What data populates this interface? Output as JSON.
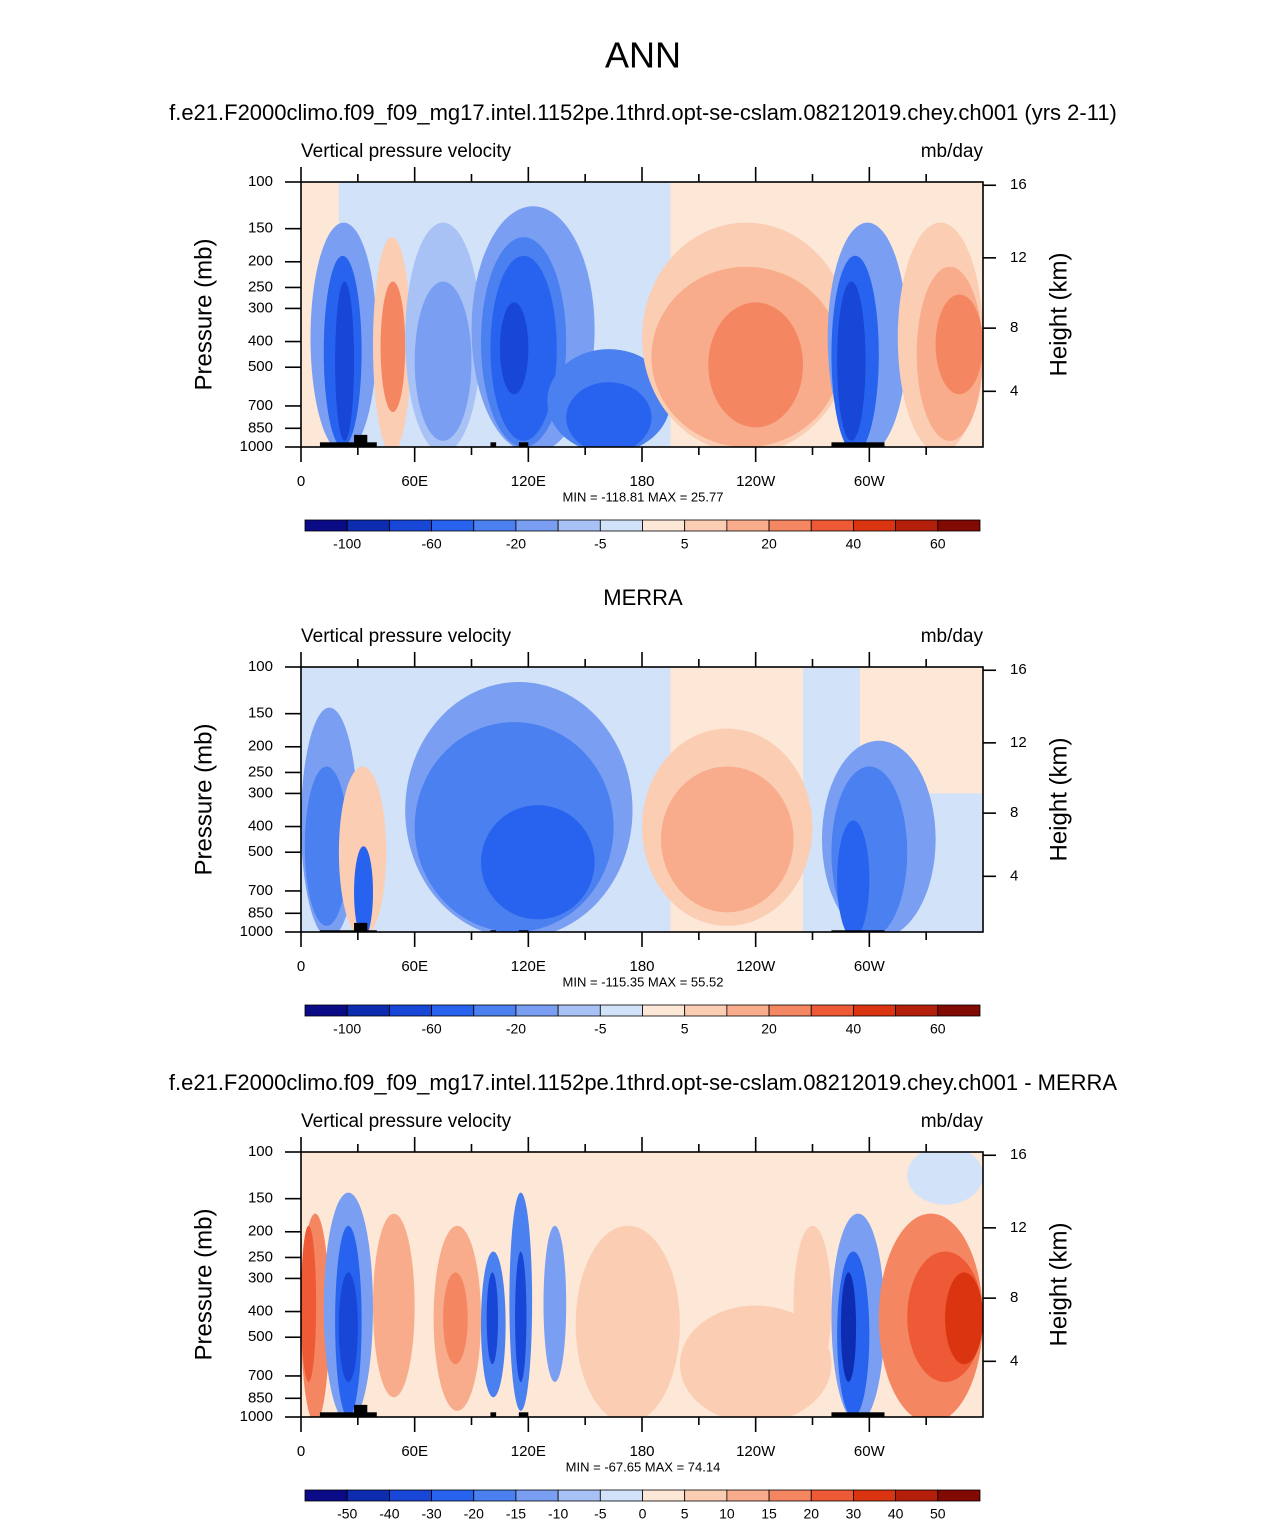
{
  "title": "ANN",
  "chart_data": [
    {
      "type": "contour",
      "title": "f.e21.F2000climo.f09_f09_mg17.intel.1152pe.1thrd.opt-se-cslam.08212019.chey.ch001 (yrs 2-11)",
      "left_string": "Vertical pressure velocity",
      "right_string": "mb/day",
      "ylabel": "Pressure (mb)",
      "y2label": "Height (km)",
      "log_y": true,
      "xlim": [
        0,
        360
      ],
      "xticks": [
        0,
        {
          "value": 60,
          "label": "60E"
        },
        {
          "value": 120,
          "label": "120E"
        },
        180,
        {
          "value": 240,
          "label": "120W"
        },
        {
          "value": 300,
          "label": "60W"
        }
      ],
      "ylim": [
        1000,
        100
      ],
      "yticks": [
        100,
        150,
        200,
        250,
        300,
        400,
        500,
        700,
        850,
        1000
      ],
      "y2ticks": [
        4,
        8,
        12,
        16
      ],
      "stats_label": "MIN = -118.81  MAX =  25.77",
      "colorbar": {
        "colors": [
          "#0b0b87",
          "#0d2cb0",
          "#1846d6",
          "#2763ee",
          "#4a80f0",
          "#7a9ff2",
          "#a8c2f5",
          "#d2e2f9",
          "#fde7d6",
          "#fbcdb3",
          "#f8ac8b",
          "#f48662",
          "#ee5a35",
          "#db3410",
          "#b31f0a",
          "#820a04"
        ],
        "labels": [
          -100,
          -60,
          -20,
          -5,
          5,
          20,
          40,
          60
        ]
      }
    },
    {
      "type": "contour",
      "title": "MERRA",
      "left_string": "Vertical pressure velocity",
      "right_string": "mb/day",
      "ylabel": "Pressure (mb)",
      "y2label": "Height (km)",
      "log_y": true,
      "xlim": [
        0,
        360
      ],
      "xticks": [
        0,
        {
          "value": 60,
          "label": "60E"
        },
        {
          "value": 120,
          "label": "120E"
        },
        180,
        {
          "value": 240,
          "label": "120W"
        },
        {
          "value": 300,
          "label": "60W"
        }
      ],
      "ylim": [
        1000,
        100
      ],
      "yticks": [
        100,
        150,
        200,
        250,
        300,
        400,
        500,
        700,
        850,
        1000
      ],
      "y2ticks": [
        4,
        8,
        12,
        16
      ],
      "stats_label": "MIN = -115.35  MAX =  55.52",
      "colorbar": {
        "colors": [
          "#0b0b87",
          "#0d2cb0",
          "#1846d6",
          "#2763ee",
          "#4a80f0",
          "#7a9ff2",
          "#a8c2f5",
          "#d2e2f9",
          "#fde7d6",
          "#fbcdb3",
          "#f8ac8b",
          "#f48662",
          "#ee5a35",
          "#db3410",
          "#b31f0a",
          "#820a04"
        ],
        "labels": [
          -100,
          -60,
          -20,
          -5,
          5,
          20,
          40,
          60
        ]
      }
    },
    {
      "type": "contour",
      "title": "f.e21.F2000climo.f09_f09_mg17.intel.1152pe.1thrd.opt-se-cslam.08212019.chey.ch001 - MERRA",
      "left_string": "Vertical pressure velocity",
      "right_string": "mb/day",
      "ylabel": "Pressure (mb)",
      "y2label": "Height (km)",
      "log_y": true,
      "xlim": [
        0,
        360
      ],
      "xticks": [
        0,
        {
          "value": 60,
          "label": "60E"
        },
        {
          "value": 120,
          "label": "120E"
        },
        180,
        {
          "value": 240,
          "label": "120W"
        },
        {
          "value": 300,
          "label": "60W"
        }
      ],
      "ylim": [
        1000,
        100
      ],
      "yticks": [
        100,
        150,
        200,
        250,
        300,
        400,
        500,
        700,
        850,
        1000
      ],
      "y2ticks": [
        4,
        8,
        12,
        16
      ],
      "stats_label": "MIN = -67.65  MAX =  74.14",
      "colorbar": {
        "colors": [
          "#0b0b87",
          "#0d2cb0",
          "#1846d6",
          "#2763ee",
          "#4a80f0",
          "#7a9ff2",
          "#a8c2f5",
          "#d2e2f9",
          "#fde7d6",
          "#fbcdb3",
          "#f8ac8b",
          "#f48662",
          "#ee5a35",
          "#db3410",
          "#b31f0a",
          "#820a04"
        ],
        "labels": [
          -50,
          -40,
          -30,
          -20,
          -15,
          -10,
          -5,
          0,
          5,
          10,
          15,
          20,
          30,
          40,
          50
        ]
      }
    }
  ]
}
